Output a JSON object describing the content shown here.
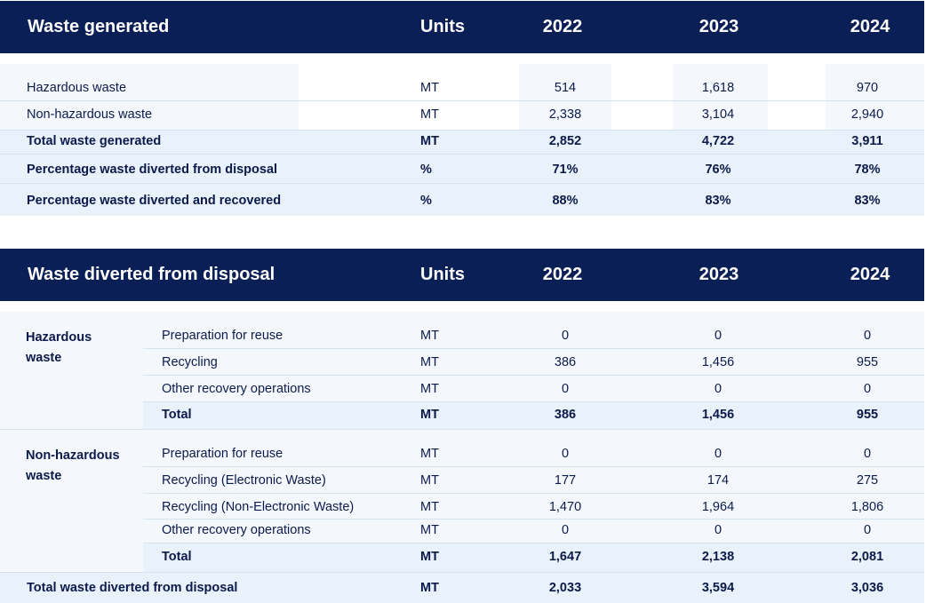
{
  "table1": {
    "title": "Waste generated",
    "headers": [
      "Units",
      "2022",
      "2023",
      "2024"
    ],
    "rows": [
      {
        "label": "Hazardous waste",
        "unit": "MT",
        "values": [
          "514",
          "1,618",
          "970"
        ],
        "bold": false
      },
      {
        "label": "Non-hazardous waste",
        "unit": "MT",
        "values": [
          "2,338",
          "3,104",
          "2,940"
        ],
        "bold": false
      },
      {
        "label": "Total waste generated",
        "unit": "MT",
        "values": [
          "2,852",
          "4,722",
          "3,911"
        ],
        "bold": true
      },
      {
        "label": "Percentage waste diverted from disposal",
        "unit": "%",
        "values": [
          "71%",
          "76%",
          "78%"
        ],
        "bold": true
      },
      {
        "label": "Percentage waste diverted and recovered",
        "unit": "%",
        "values": [
          "88%",
          "83%",
          "83%"
        ],
        "bold": true
      }
    ]
  },
  "table2": {
    "title": "Waste diverted from disposal",
    "headers": [
      "Units",
      "2022",
      "2023",
      "2024"
    ],
    "groups": [
      {
        "name": "Hazardous waste",
        "rows": [
          {
            "label": "Preparation for reuse",
            "unit": "MT",
            "values": [
              "0",
              "0",
              "0"
            ],
            "bold": false
          },
          {
            "label": "Recycling",
            "unit": "MT",
            "values": [
              "386",
              "1,456",
              "955"
            ],
            "bold": false
          },
          {
            "label": "Other recovery operations",
            "unit": "MT",
            "values": [
              "0",
              "0",
              "0"
            ],
            "bold": false
          },
          {
            "label": "Total",
            "unit": "MT",
            "values": [
              "386",
              "1,456",
              "955"
            ],
            "bold": true
          }
        ]
      },
      {
        "name": "Non-hazardous waste",
        "rows": [
          {
            "label": "Preparation for reuse",
            "unit": "MT",
            "values": [
              "0",
              "0",
              "0"
            ],
            "bold": false
          },
          {
            "label": "Recycling (Electronic Waste)",
            "unit": "MT",
            "values": [
              "177",
              "174",
              "275"
            ],
            "bold": false
          },
          {
            "label": "Recycling (Non-Electronic Waste)",
            "unit": "MT",
            "values": [
              "1,470",
              "1,964",
              "1,806"
            ],
            "bold": false
          },
          {
            "label": "Other recovery operations",
            "unit": "MT",
            "values": [
              "0",
              "0",
              "0"
            ],
            "bold": false
          },
          {
            "label": "Total",
            "unit": "MT",
            "values": [
              "1,647",
              "2,138",
              "2,081"
            ],
            "bold": true
          }
        ]
      }
    ],
    "total_row": {
      "label": "Total waste diverted from disposal",
      "unit": "MT",
      "values": [
        "2,033",
        "3,594",
        "3,036"
      ],
      "bold": true
    }
  }
}
